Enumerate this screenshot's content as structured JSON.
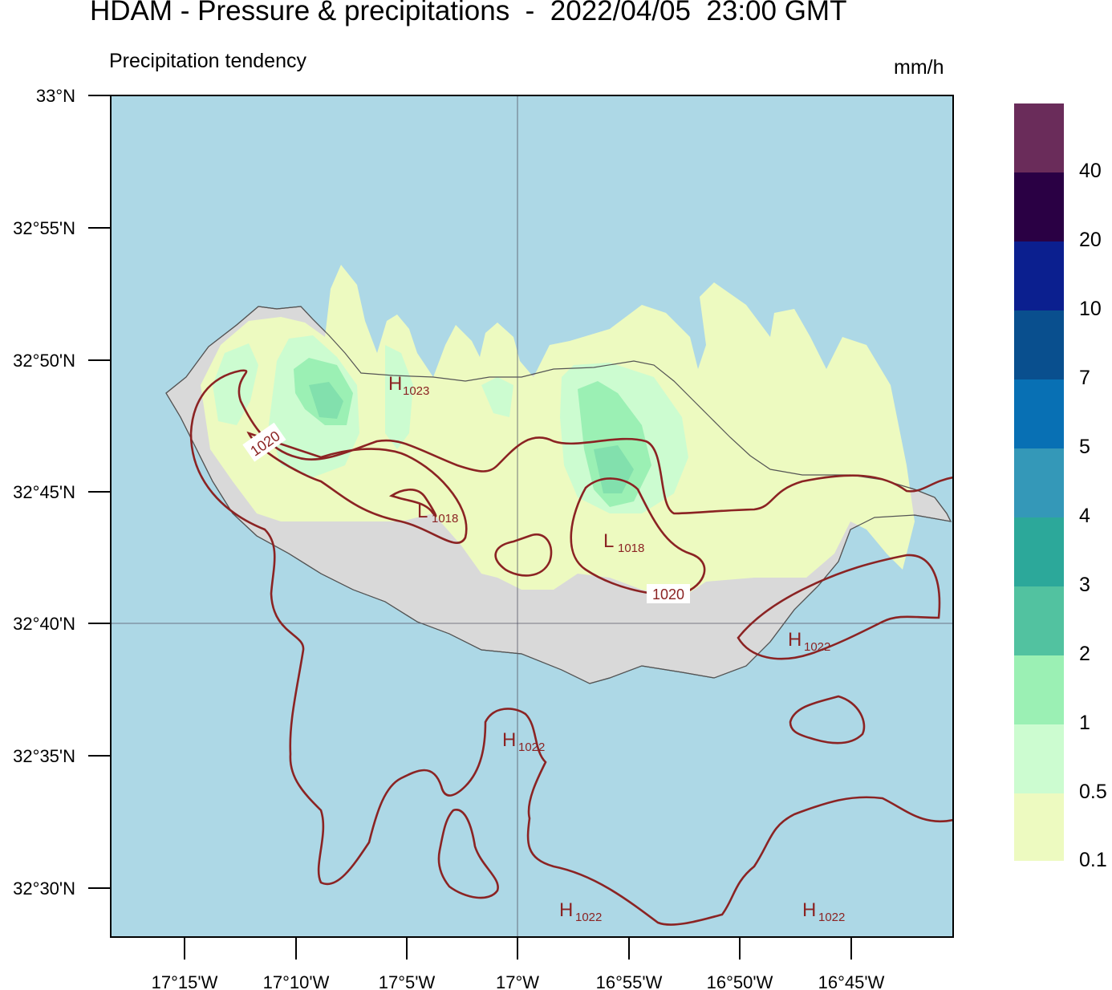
{
  "header": {
    "title": "HDAM - Pressure & precipitations  -  2022/04/05  23:00 GMT",
    "subtitle": "Precipitation tendency",
    "units": "mm/h"
  },
  "map": {
    "lat_labels": [
      "33°N",
      "32°55'N",
      "32°50'N",
      "32°45'N",
      "32°40'N",
      "32°35'N",
      "32°30'N"
    ],
    "lon_labels": [
      "17°15'W",
      "17°10'W",
      "17°5'W",
      "17°W",
      "16°55'W",
      "16°50'W",
      "16°45'W"
    ],
    "colors": {
      "sea": "#add8e6",
      "land": "#d9d9d9",
      "isobar": "#8b2323"
    },
    "isobar_labels": [
      "1020",
      "1020"
    ],
    "pressure_centers": [
      {
        "type": "H",
        "value": "1023"
      },
      {
        "type": "L",
        "value": "1018"
      },
      {
        "type": "L",
        "value": "1018"
      },
      {
        "type": "H",
        "value": "1022"
      },
      {
        "type": "H",
        "value": "1022"
      },
      {
        "type": "H",
        "value": "1022"
      },
      {
        "type": "H",
        "value": "1022"
      }
    ]
  },
  "colorbar": {
    "labels": [
      "40",
      "20",
      "10",
      "7",
      "5",
      "4",
      "3",
      "2",
      "1",
      "0.5",
      "0.1"
    ],
    "colors": [
      "#6a2c5a",
      "#2a0044",
      "#0b1f8f",
      "#094f8e",
      "#0870b4",
      "#3498b8",
      "#2ca89a",
      "#52c2a0",
      "#9bf0b4",
      "#ccfcd0",
      "#edfac0"
    ]
  }
}
